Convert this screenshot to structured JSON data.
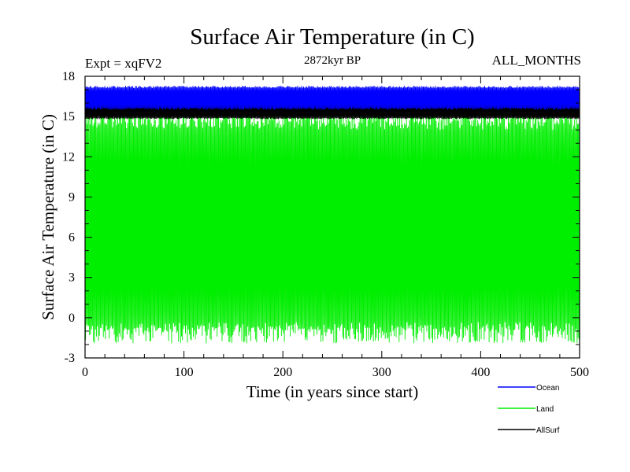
{
  "chart_data": {
    "type": "line",
    "title": "Surface Air Temperature (in C)",
    "subtitle_left": "Expt = xqFV2",
    "subtitle_center": "2872kyr BP",
    "subtitle_right": "ALL_MONTHS",
    "xlabel": "Time (in years since start)",
    "ylabel": "Surface Air Temperature (in C)",
    "xlim": [
      0,
      500
    ],
    "ylim": [
      -3,
      18
    ],
    "xticks": [
      0,
      100,
      200,
      300,
      400,
      500
    ],
    "yticks": [
      -3,
      0,
      3,
      6,
      9,
      12,
      15,
      18
    ],
    "x_tick_labels": [
      "0",
      "100",
      "200",
      "300",
      "400",
      "500"
    ],
    "y_tick_labels": [
      "-3",
      "0",
      "3",
      "6",
      "9",
      "12",
      "15",
      "18"
    ],
    "legend_position": "bottom-right",
    "series": [
      {
        "name": "Ocean",
        "color": "#0000ff",
        "approx_min": 15.5,
        "approx_max": 17.3,
        "note": "monthly values, annual cycle"
      },
      {
        "name": "Land",
        "color": "#00ee00",
        "approx_min": -2.0,
        "approx_max": 15.7,
        "note": "monthly values, annual cycle"
      },
      {
        "name": "AllSurf",
        "color": "#000000",
        "approx_min": 14.8,
        "approx_max": 16.0,
        "note": "monthly values, annual cycle"
      }
    ]
  }
}
